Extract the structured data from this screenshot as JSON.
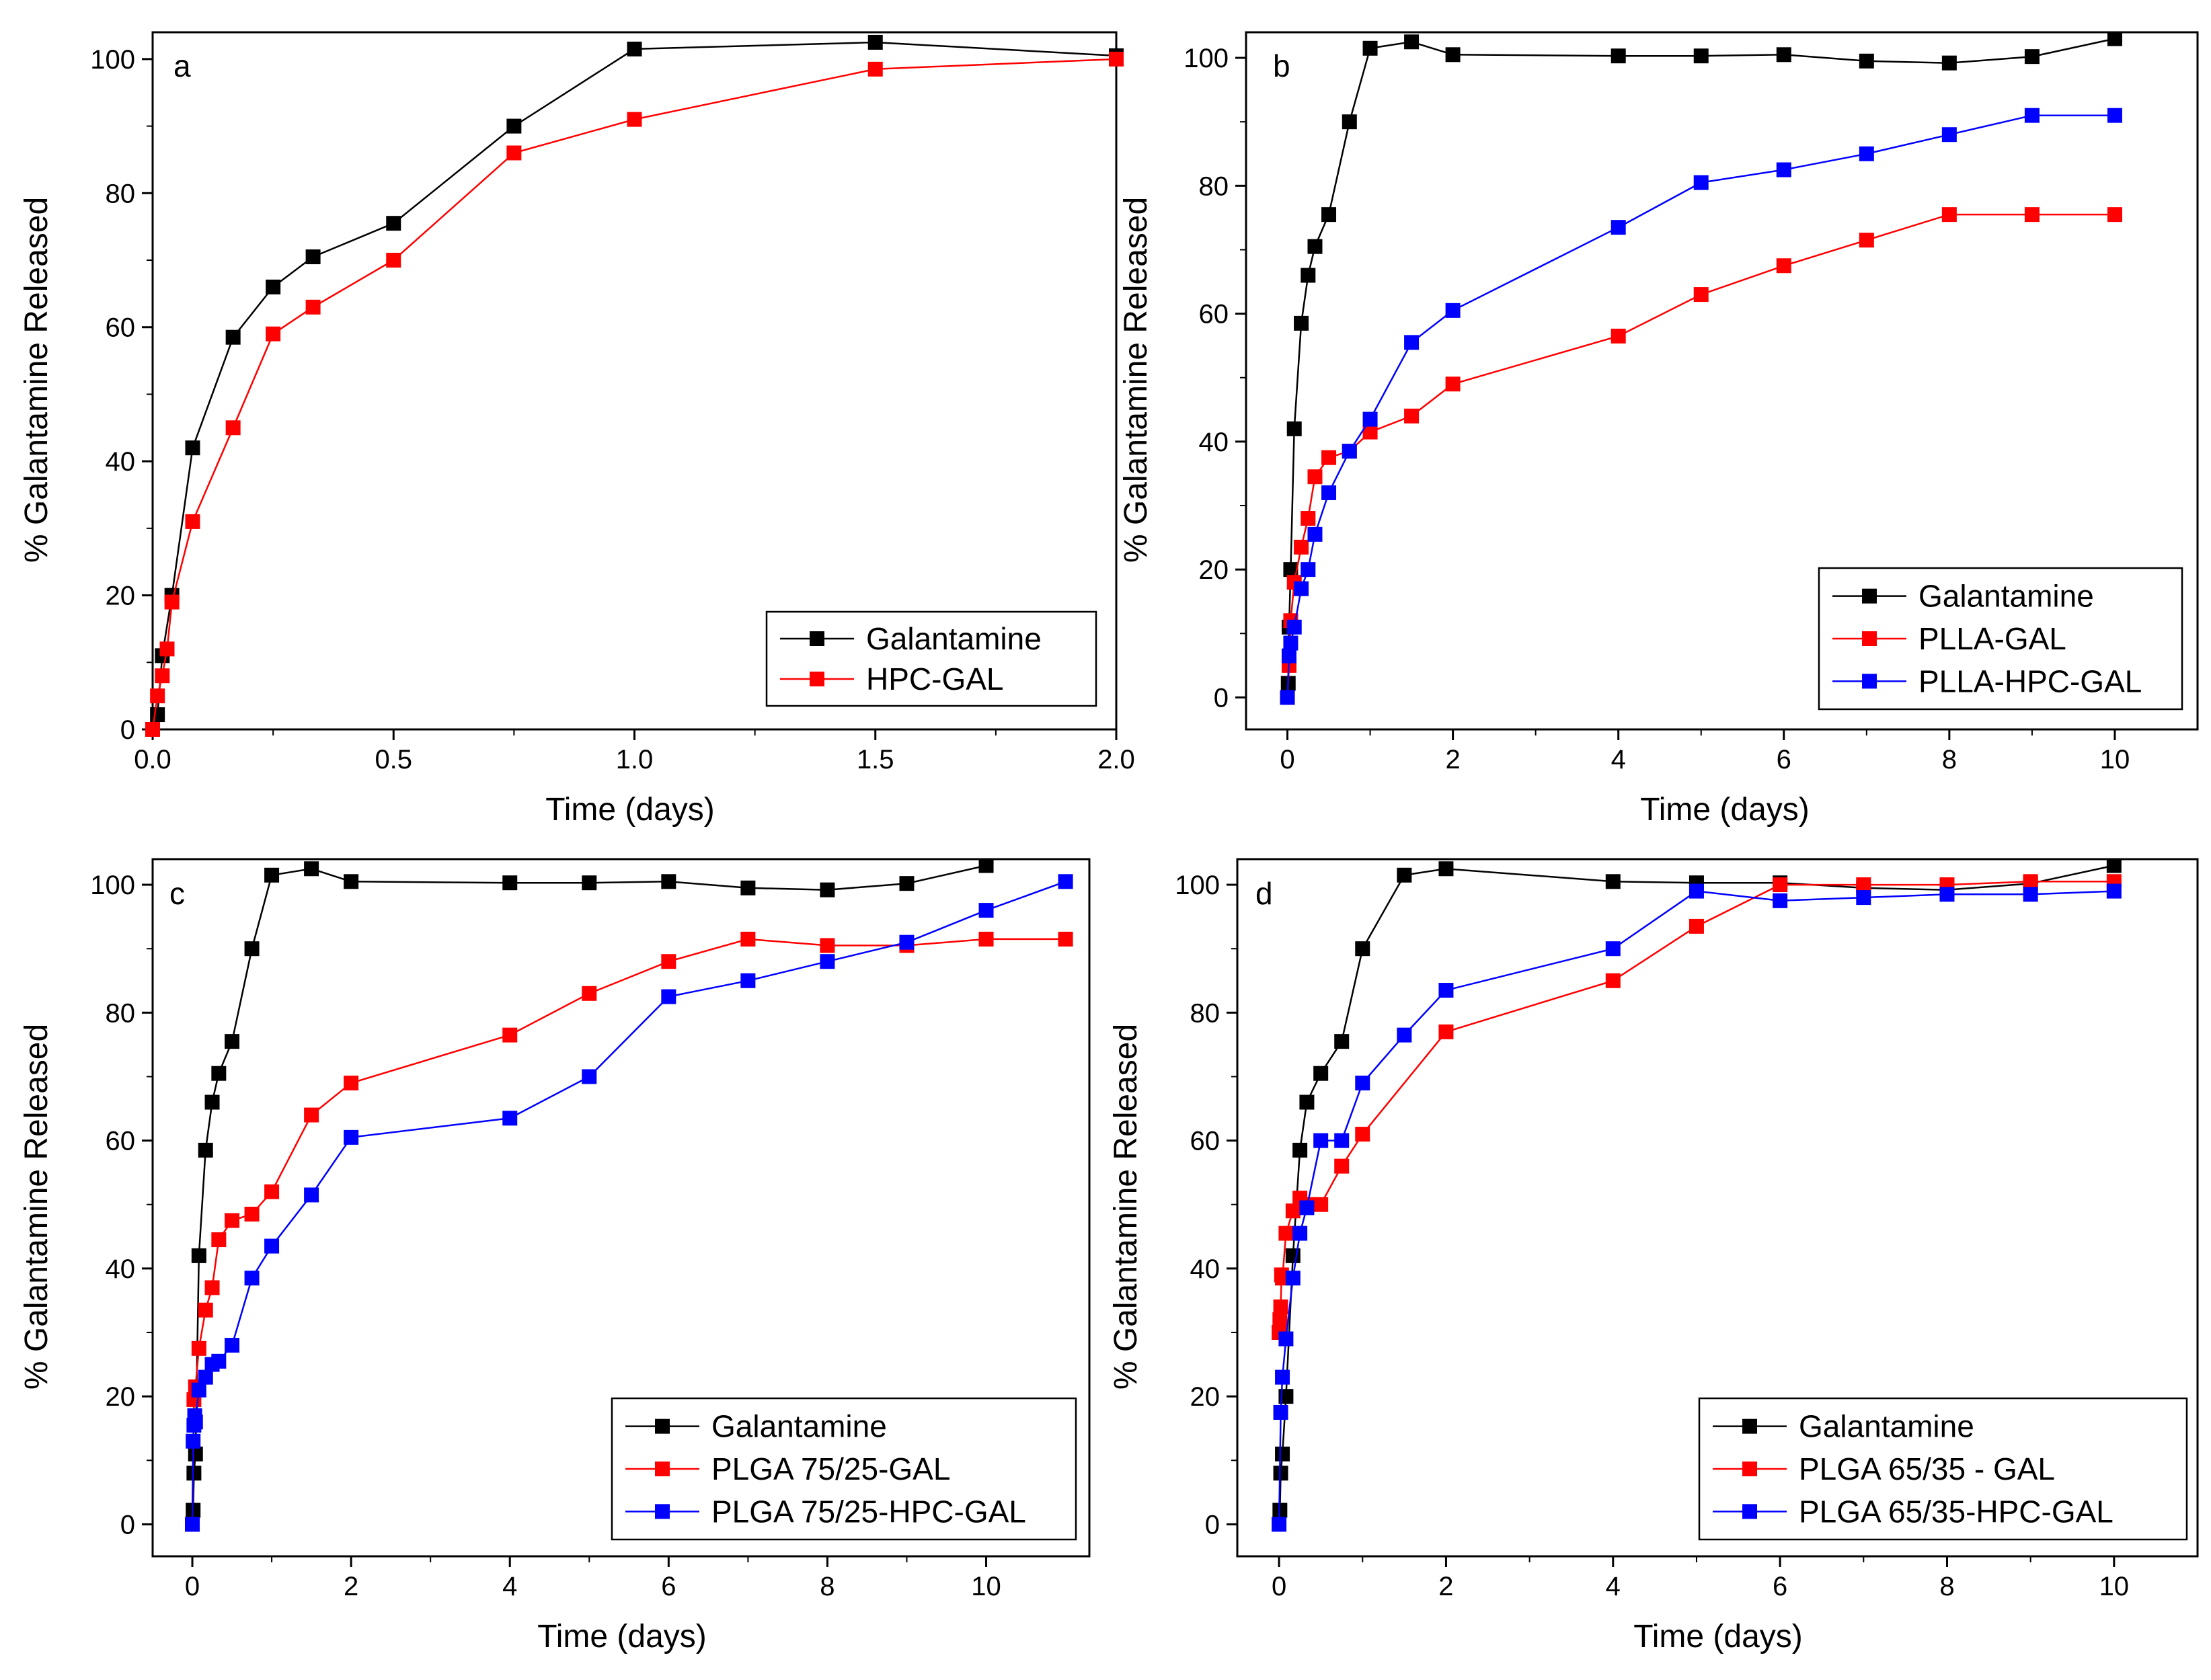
{
  "chart_data": [
    {
      "type": "line",
      "panel_label": "a",
      "xlabel": "Time (days)",
      "ylabel": "% Galantamine Released",
      "xlim": [
        0,
        2.0
      ],
      "ylim": [
        0,
        104
      ],
      "xticks": [
        0.0,
        0.5,
        1.0,
        1.5,
        2.0
      ],
      "xtick_labels": [
        "0.0",
        "0.5",
        "1.0",
        "1.5",
        "2.0"
      ],
      "yticks": [
        0,
        20,
        40,
        60,
        80,
        100
      ],
      "ytick_labels": [
        "0",
        "20",
        "40",
        "60",
        "80",
        "100"
      ],
      "legend_position": "bottom-right",
      "series": [
        {
          "name": "Galantamine",
          "color": "#000000",
          "x": [
            0.01,
            0.02,
            0.04,
            0.083,
            0.167,
            0.25,
            0.333,
            0.5,
            0.75,
            1.0,
            1.5,
            2.0
          ],
          "y": [
            2.2,
            11,
            20,
            42,
            58.5,
            66,
            70.5,
            75.5,
            90,
            101.5,
            102.5,
            100.5
          ]
        },
        {
          "name": "HPC-GAL",
          "color": "#ff0000",
          "x": [
            0.0,
            0.01,
            0.02,
            0.03,
            0.04,
            0.083,
            0.167,
            0.25,
            0.333,
            0.5,
            0.75,
            1.0,
            1.5,
            2.0
          ],
          "y": [
            0,
            5,
            8,
            12,
            19,
            31,
            45,
            59,
            63,
            70,
            86,
            91,
            98.5,
            100
          ]
        }
      ]
    },
    {
      "type": "line",
      "panel_label": "b",
      "xlabel": "Time (days)",
      "ylabel": "% Galantamine Released",
      "xlim": [
        -0.5,
        11
      ],
      "ylim": [
        -5,
        104
      ],
      "xticks": [
        0,
        2,
        4,
        6,
        8,
        10
      ],
      "xtick_labels": [
        "0",
        "2",
        "4",
        "6",
        "8",
        "10"
      ],
      "yticks": [
        0,
        20,
        40,
        60,
        80,
        100
      ],
      "ytick_labels": [
        "0",
        "20",
        "40",
        "60",
        "80",
        "100"
      ],
      "legend_position": "bottom-right",
      "series": [
        {
          "name": "Galantamine",
          "color": "#000000",
          "x": [
            0.01,
            0.02,
            0.04,
            0.083,
            0.167,
            0.25,
            0.333,
            0.5,
            0.75,
            1.0,
            1.5,
            2.0,
            4.0,
            5.0,
            6.0,
            7.0,
            8.0,
            9.0,
            10.0
          ],
          "y": [
            2.2,
            11,
            20,
            42,
            58.5,
            66,
            70.5,
            75.5,
            90,
            101.5,
            102.5,
            100.5,
            100.3,
            100.3,
            100.5,
            99.5,
            99.2,
            100.2,
            103
          ]
        },
        {
          "name": "PLLA-GAL",
          "color": "#ff0000",
          "x": [
            0.0,
            0.02,
            0.04,
            0.083,
            0.167,
            0.25,
            0.333,
            0.5,
            0.75,
            1.0,
            1.5,
            2.0,
            4.0,
            5.0,
            6.0,
            7.0,
            8.0,
            9.0,
            10.0
          ],
          "y": [
            0,
            5,
            12,
            18,
            23.5,
            28,
            34.5,
            37.5,
            38.5,
            41.5,
            44,
            49,
            56.5,
            63,
            67.5,
            71.5,
            75.5,
            75.5,
            75.5
          ]
        },
        {
          "name": "PLLA-HPC-GAL",
          "color": "#0000ff",
          "x": [
            0.0,
            0.02,
            0.04,
            0.083,
            0.167,
            0.25,
            0.333,
            0.5,
            0.75,
            1.0,
            1.5,
            2.0,
            4.0,
            5.0,
            6.0,
            7.0,
            8.0,
            9.0,
            10.0
          ],
          "y": [
            0,
            6.5,
            8.5,
            11,
            17,
            20,
            25.5,
            32,
            38.5,
            43.5,
            55.5,
            60.5,
            73.5,
            80.5,
            82.5,
            85,
            88,
            91,
            91
          ]
        }
      ]
    },
    {
      "type": "line",
      "panel_label": "c",
      "xlabel": "Time (days)",
      "ylabel": "% Galantamine Released",
      "xlim": [
        -0.5,
        11.3
      ],
      "ylim": [
        -5,
        104
      ],
      "xticks": [
        0,
        2,
        4,
        6,
        8,
        10
      ],
      "xtick_labels": [
        "0",
        "2",
        "4",
        "6",
        "8",
        "10"
      ],
      "yticks": [
        0,
        20,
        40,
        60,
        80,
        100
      ],
      "ytick_labels": [
        "0",
        "20",
        "40",
        "60",
        "80",
        "100"
      ],
      "legend_position": "bottom-right",
      "series": [
        {
          "name": "Galantamine",
          "color": "#000000",
          "x": [
            0.01,
            0.02,
            0.04,
            0.083,
            0.167,
            0.25,
            0.333,
            0.5,
            0.75,
            1.0,
            1.5,
            2.0,
            4.0,
            5.0,
            6.0,
            7.0,
            8.0,
            9.0,
            10.0
          ],
          "y": [
            2.2,
            8,
            11,
            42,
            58.5,
            66,
            70.5,
            75.5,
            90,
            101.5,
            102.5,
            100.5,
            100.3,
            100.3,
            100.5,
            99.5,
            99.2,
            100.2,
            103
          ]
        },
        {
          "name": "PLGA 75/25-GAL",
          "color": "#ff0000",
          "x": [
            0.0,
            0.02,
            0.04,
            0.083,
            0.167,
            0.25,
            0.333,
            0.5,
            0.75,
            1.0,
            1.5,
            2.0,
            4.0,
            5.0,
            6.0,
            7.0,
            8.0,
            9.0,
            10.0,
            11.0
          ],
          "y": [
            0,
            19.5,
            21.5,
            27.5,
            33.5,
            37,
            44.5,
            47.5,
            48.5,
            52,
            64,
            69,
            76.5,
            83,
            88,
            91.5,
            90.5,
            90.5,
            91.5,
            91.5
          ]
        },
        {
          "name": "PLGA 75/25-HPC-GAL",
          "color": "#0000ff",
          "x": [
            0.0,
            0.01,
            0.02,
            0.03,
            0.04,
            0.083,
            0.167,
            0.25,
            0.333,
            0.5,
            0.75,
            1.0,
            1.5,
            2.0,
            4.0,
            5.0,
            6.0,
            7.0,
            8.0,
            9.0,
            10.0,
            11.0
          ],
          "y": [
            0,
            13,
            15.5,
            17,
            16,
            21,
            23,
            25,
            25.5,
            28,
            38.5,
            43.5,
            51.5,
            60.5,
            63.5,
            70,
            82.5,
            85,
            88,
            91,
            96,
            100.5
          ]
        }
      ]
    },
    {
      "type": "line",
      "panel_label": "d",
      "xlabel": "Time (days)",
      "ylabel": "% Galantamine Released",
      "xlim": [
        -0.5,
        11
      ],
      "ylim": [
        -5,
        104
      ],
      "xticks": [
        0,
        2,
        4,
        6,
        8,
        10
      ],
      "xtick_labels": [
        "0",
        "2",
        "4",
        "6",
        "8",
        "10"
      ],
      "yticks": [
        0,
        20,
        40,
        60,
        80,
        100
      ],
      "ytick_labels": [
        "0",
        "20",
        "40",
        "60",
        "80",
        "100"
      ],
      "legend_position": "bottom-right",
      "series": [
        {
          "name": "Galantamine",
          "color": "#000000",
          "x": [
            0.01,
            0.02,
            0.04,
            0.083,
            0.167,
            0.25,
            0.333,
            0.5,
            0.75,
            1.0,
            1.5,
            2.0,
            4.0,
            5.0,
            6.0,
            7.0,
            8.0,
            9.0,
            10.0
          ],
          "y": [
            2.2,
            8,
            11,
            20,
            42,
            58.5,
            66,
            70.5,
            75.5,
            90,
            101.5,
            102.5,
            100.5,
            100.3,
            100.3,
            99.5,
            99.2,
            100.2,
            103
          ]
        },
        {
          "name": "PLGA 65/35 - GAL",
          "color": "#ff0000",
          "x": [
            0.0,
            0.01,
            0.02,
            0.03,
            0.04,
            0.083,
            0.167,
            0.25,
            0.333,
            0.5,
            0.75,
            1.0,
            2.0,
            4.0,
            5.0,
            6.0,
            7.0,
            8.0,
            9.0,
            10.0
          ],
          "y": [
            30,
            32,
            34,
            39,
            38.5,
            45.5,
            49,
            51,
            50,
            50,
            56,
            61,
            77,
            85,
            93.5,
            100,
            100,
            100,
            100.5,
            100.5
          ]
        },
        {
          "name": "PLGA 65/35-HPC-GAL",
          "color": "#0000ff",
          "x": [
            0.0,
            0.02,
            0.04,
            0.083,
            0.167,
            0.25,
            0.333,
            0.5,
            0.75,
            1.0,
            1.5,
            2.0,
            4.0,
            5.0,
            6.0,
            7.0,
            8.0,
            9.0,
            10.0
          ],
          "y": [
            0,
            17.5,
            23,
            29,
            38.5,
            45.5,
            49.5,
            60,
            60,
            69,
            76.5,
            83.5,
            90,
            99,
            97.5,
            98,
            98.5,
            98.5,
            99
          ]
        }
      ]
    }
  ]
}
